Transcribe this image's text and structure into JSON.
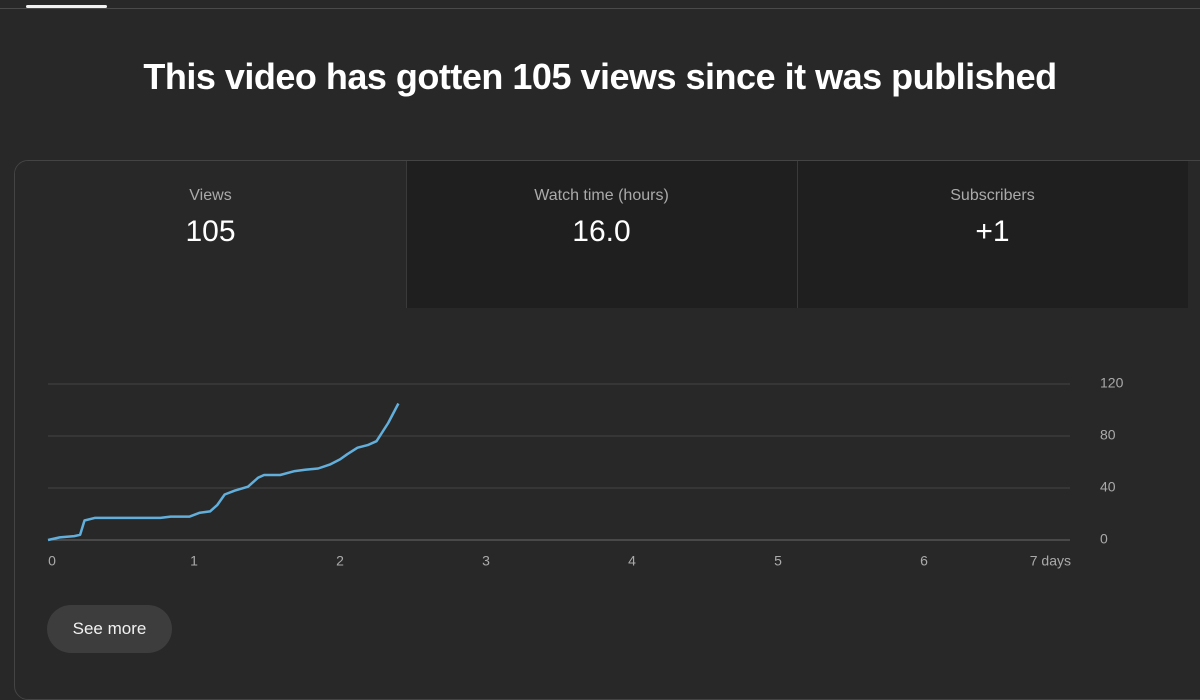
{
  "header": {
    "title": "This video has gotten 105 views since it was published"
  },
  "tabs": [
    {
      "label": "Views",
      "value": "105"
    },
    {
      "label": "Watch time (hours)",
      "value": "16.0"
    },
    {
      "label": "Subscribers",
      "value": "+1"
    }
  ],
  "chart_data": {
    "type": "line",
    "color": "#62afdc",
    "x": [
      0,
      0.08,
      0.18,
      0.22,
      0.25,
      0.32,
      0.77,
      0.84,
      0.97,
      1.04,
      1.11,
      1.16,
      1.21,
      1.28,
      1.37,
      1.44,
      1.48,
      1.59,
      1.69,
      1.76,
      1.85,
      1.93,
      2.0,
      2.05,
      2.12,
      2.19,
      2.25,
      2.33,
      2.4
    ],
    "values": [
      0,
      2,
      3,
      4,
      15,
      17,
      17,
      18,
      18,
      21,
      22,
      27,
      35,
      38,
      41,
      48,
      50,
      50,
      53,
      54,
      55,
      58,
      62,
      66,
      71,
      73,
      76,
      90,
      105
    ],
    "xlim": [
      0,
      7
    ],
    "xticks": [
      0,
      1,
      2,
      3,
      4,
      5,
      6,
      {
        "value": 7,
        "label": "7 days"
      }
    ],
    "ylim": [
      0,
      120
    ],
    "yticks": [
      0,
      40,
      80,
      120
    ],
    "grid": true
  },
  "button": {
    "label": "See more"
  }
}
